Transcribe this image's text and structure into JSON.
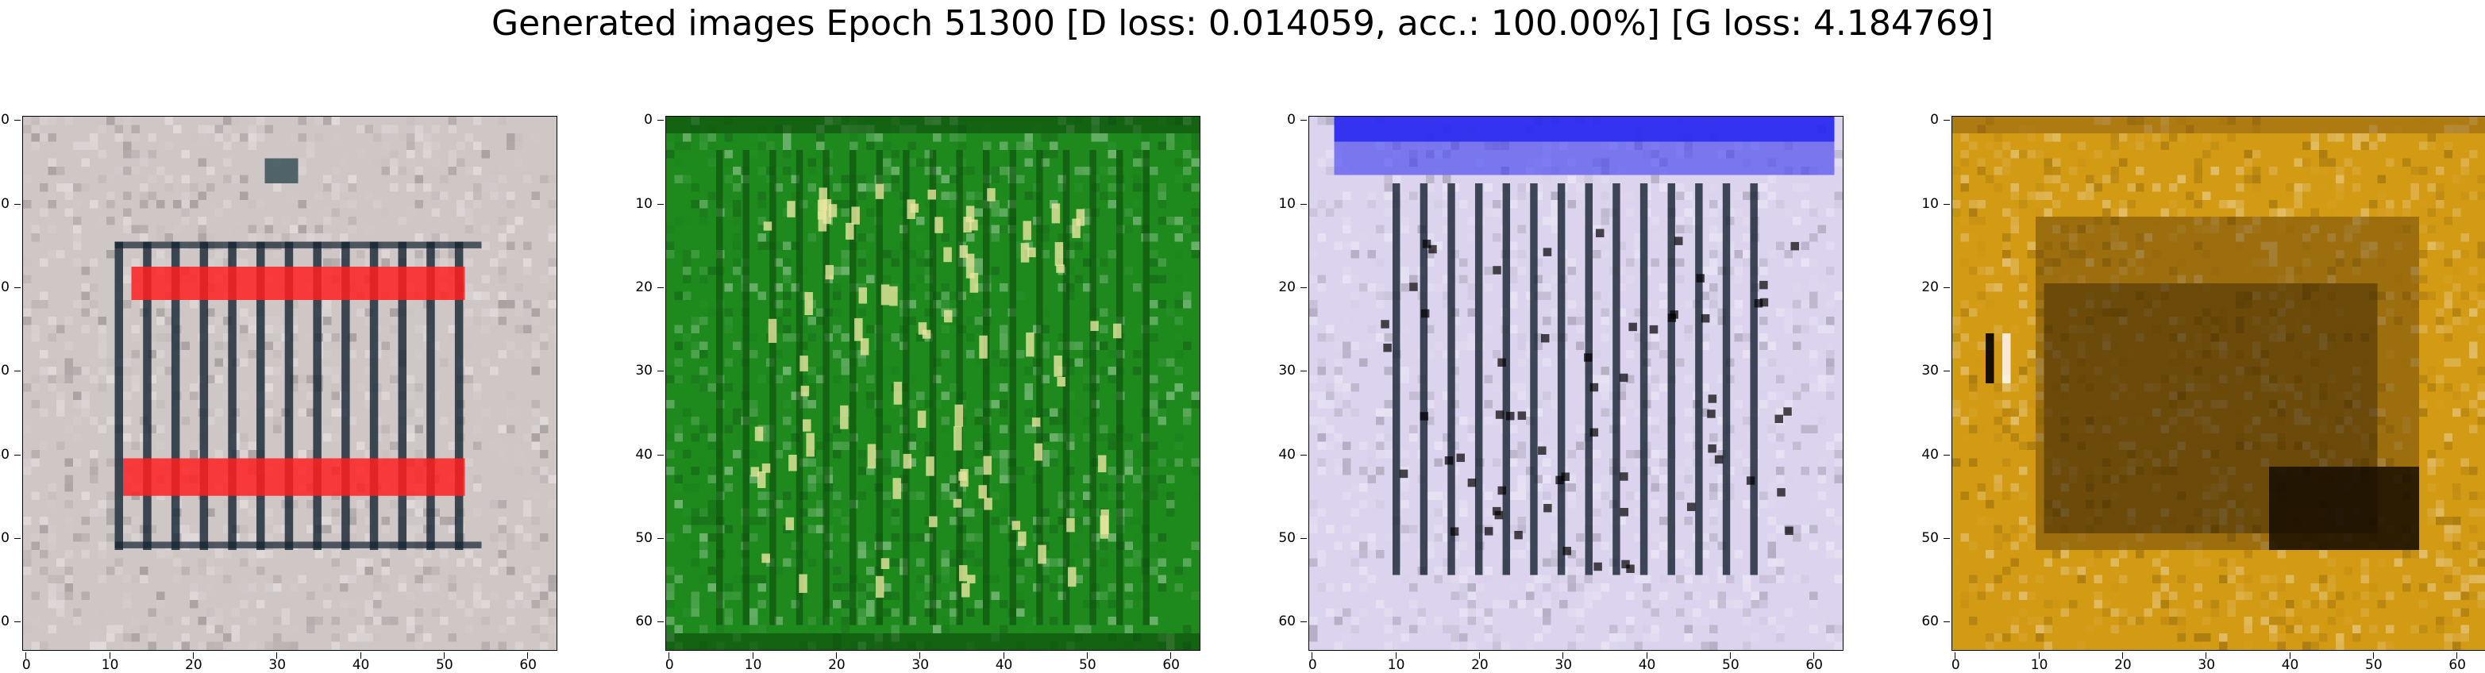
{
  "figure": {
    "title": "Generated images Epoch 51300 [D loss: 0.014059, acc.: 100.00%] [G loss: 4.184769]",
    "tick_values": [
      "0",
      "10",
      "20",
      "30",
      "40",
      "50",
      "60"
    ]
  },
  "panels": [
    {
      "theme": "red-bars-grid",
      "base": "#cfc6c6",
      "line": "#142432",
      "accent": "#ff2020"
    },
    {
      "theme": "green-noise",
      "base": "#1e8a1e",
      "line": "#0c4a0c",
      "accent": "#e8e6a0"
    },
    {
      "theme": "blue-top-grid",
      "base": "#dcd4ee",
      "line": "#14202e",
      "accent": "#2a2aee"
    },
    {
      "theme": "ochre-dark-blob",
      "base": "#d39a14",
      "line": "#5a3a06",
      "accent": "#100800"
    }
  ]
}
